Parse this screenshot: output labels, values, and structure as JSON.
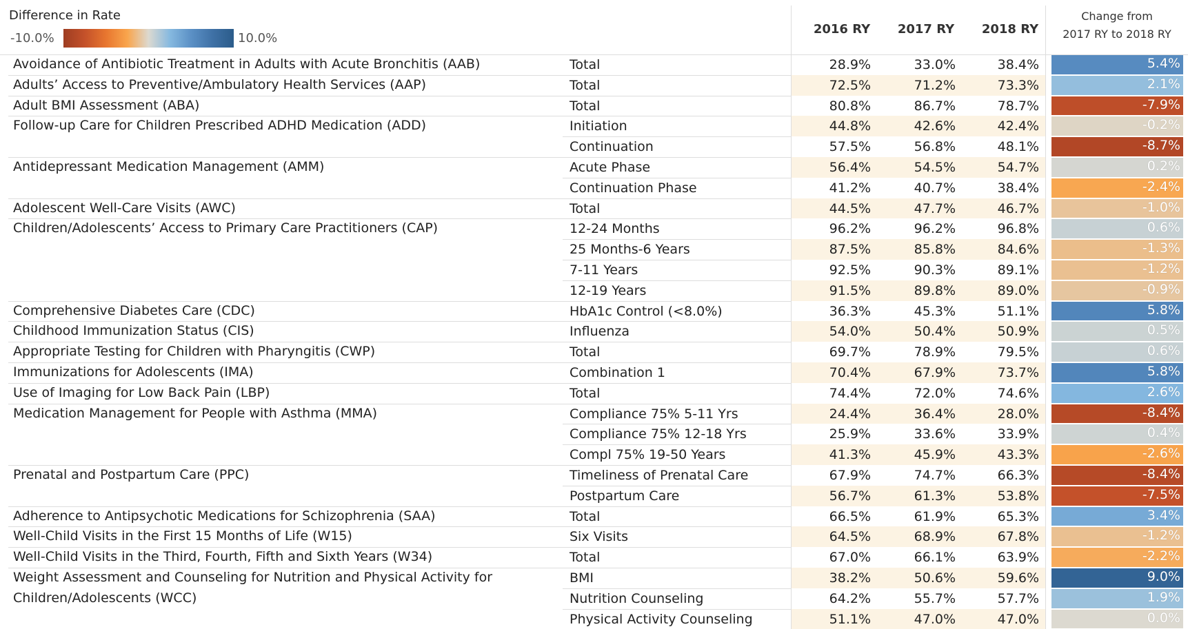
{
  "legend": {
    "title": "Difference in Rate",
    "min": "-10.0%",
    "max": "10.0%",
    "colors": [
      "#9e3d22",
      "#c4512a",
      "#e8762f",
      "#f9a54c",
      "#dcd9d0",
      "#86b9e0",
      "#5b90c5",
      "#3f71a6",
      "#2b5c8a"
    ]
  },
  "table": {
    "columns": [
      "2016 RY",
      "2017 RY",
      "2018 RY"
    ],
    "change_header": [
      "Change from",
      "2017 RY to 2018 RY"
    ],
    "rows": [
      {
        "measure": [
          "Avoidance of Antibiotic Treatment in Adults with Acute Bronchitis (AAB)"
        ],
        "sub": "Total",
        "r2016": "28.9%",
        "r2017": "33.0%",
        "r2018": "38.4%",
        "change": "5.4%"
      },
      {
        "measure": [
          "Adults’ Access to Preventive/Ambulatory Health Services (AAP)"
        ],
        "sub": "Total",
        "r2016": "72.5%",
        "r2017": "71.2%",
        "r2018": "73.3%",
        "change": "2.1%"
      },
      {
        "measure": [
          "Adult BMI Assessment (ABA)"
        ],
        "sub": "Total",
        "r2016": "80.8%",
        "r2017": "86.7%",
        "r2018": "78.7%",
        "change": "-7.9%"
      },
      {
        "measure": [
          "Follow-up Care for Children Prescribed ADHD Medication (ADD)"
        ],
        "sub": "Initiation",
        "r2016": "44.8%",
        "r2017": "42.6%",
        "r2018": "42.4%",
        "change": "-0.2%"
      },
      {
        "sub": "Continuation",
        "r2016": "57.5%",
        "r2017": "56.8%",
        "r2018": "48.1%",
        "change": "-8.7%"
      },
      {
        "measure": [
          "Antidepressant Medication Management (AMM)"
        ],
        "sub": "Acute Phase",
        "r2016": "56.4%",
        "r2017": "54.5%",
        "r2018": "54.7%",
        "change": "0.2%"
      },
      {
        "sub": "Continuation Phase",
        "r2016": "41.2%",
        "r2017": "40.7%",
        "r2018": "38.4%",
        "change": "-2.4%"
      },
      {
        "measure": [
          "Adolescent Well-Care Visits (AWC)"
        ],
        "sub": "Total",
        "r2016": "44.5%",
        "r2017": "47.7%",
        "r2018": "46.7%",
        "change": "-1.0%"
      },
      {
        "measure": [
          "Children/Adolescents’ Access to Primary Care Practitioners (CAP)"
        ],
        "sub": "12-24 Months",
        "r2016": "96.2%",
        "r2017": "96.2%",
        "r2018": "96.8%",
        "change": "0.6%"
      },
      {
        "sub": "25 Months-6 Years",
        "r2016": "87.5%",
        "r2017": "85.8%",
        "r2018": "84.6%",
        "change": "-1.3%"
      },
      {
        "sub": "7-11 Years",
        "r2016": "92.5%",
        "r2017": "90.3%",
        "r2018": "89.1%",
        "change": "-1.2%"
      },
      {
        "sub": "12-19 Years",
        "r2016": "91.5%",
        "r2017": "89.8%",
        "r2018": "89.0%",
        "change": "-0.9%"
      },
      {
        "measure": [
          "Comprehensive Diabetes Care (CDC)"
        ],
        "sub": "HbA1c Control (<8.0%)",
        "r2016": "36.3%",
        "r2017": "45.3%",
        "r2018": "51.1%",
        "change": "5.8%"
      },
      {
        "measure": [
          "Childhood Immunization Status (CIS)"
        ],
        "sub": "Influenza",
        "r2016": "54.0%",
        "r2017": "50.4%",
        "r2018": "50.9%",
        "change": "0.5%"
      },
      {
        "measure": [
          "Appropriate Testing for Children with Pharyngitis (CWP)"
        ],
        "sub": "Total",
        "r2016": "69.7%",
        "r2017": "78.9%",
        "r2018": "79.5%",
        "change": "0.6%"
      },
      {
        "measure": [
          "Immunizations for Adolescents (IMA)"
        ],
        "sub": "Combination 1",
        "r2016": "70.4%",
        "r2017": "67.9%",
        "r2018": "73.7%",
        "change": "5.8%"
      },
      {
        "measure": [
          "Use of Imaging for Low Back Pain (LBP)"
        ],
        "sub": "Total",
        "r2016": "74.4%",
        "r2017": "72.0%",
        "r2018": "74.6%",
        "change": "2.6%"
      },
      {
        "measure": [
          "Medication Management for People with Asthma (MMA)"
        ],
        "sub": "Compliance 75% 5-11 Yrs",
        "r2016": "24.4%",
        "r2017": "36.4%",
        "r2018": "28.0%",
        "change": "-8.4%"
      },
      {
        "sub": "Compliance 75% 12-18 Yrs",
        "r2016": "25.9%",
        "r2017": "33.6%",
        "r2018": "33.9%",
        "change": "0.4%"
      },
      {
        "sub": "Compl 75% 19-50 Years",
        "r2016": "41.3%",
        "r2017": "45.9%",
        "r2018": "43.3%",
        "change": "-2.6%"
      },
      {
        "measure": [
          "Prenatal and Postpartum Care (PPC)"
        ],
        "sub": "Timeliness of Prenatal Care",
        "r2016": "67.9%",
        "r2017": "74.7%",
        "r2018": "66.3%",
        "change": "-8.4%"
      },
      {
        "sub": "Postpartum Care",
        "r2016": "56.7%",
        "r2017": "61.3%",
        "r2018": "53.8%",
        "change": "-7.5%"
      },
      {
        "measure": [
          "Adherence to Antipsychotic Medications for Schizophrenia (SAA)"
        ],
        "sub": "Total",
        "r2016": "66.5%",
        "r2017": "61.9%",
        "r2018": "65.3%",
        "change": "3.4%"
      },
      {
        "measure": [
          "Well-Child Visits in the First 15 Months of Life (W15)"
        ],
        "sub": "Six Visits",
        "r2016": "64.5%",
        "r2017": "68.9%",
        "r2018": "67.8%",
        "change": "-1.2%"
      },
      {
        "measure": [
          "Well-Child Visits in the Third, Fourth, Fifth and Sixth Years (W34)"
        ],
        "sub": "Total",
        "r2016": "67.0%",
        "r2017": "66.1%",
        "r2018": "63.9%",
        "change": "-2.2%"
      },
      {
        "measure": [
          "Weight Assessment and Counseling for Nutrition and Physical Activity for",
          "Children/Adolescents        (WCC)"
        ],
        "sub": "BMI",
        "r2016": "38.2%",
        "r2017": "50.6%",
        "r2018": "59.6%",
        "change": "9.0%"
      },
      {
        "sub": "Nutrition Counseling",
        "r2016": "64.2%",
        "r2017": "55.7%",
        "r2018": "57.7%",
        "change": "1.9%"
      },
      {
        "sub": "Physical Activity Counseling",
        "r2016": "51.1%",
        "r2017": "47.0%",
        "r2018": "47.0%",
        "change": "0.0%"
      }
    ]
  }
}
